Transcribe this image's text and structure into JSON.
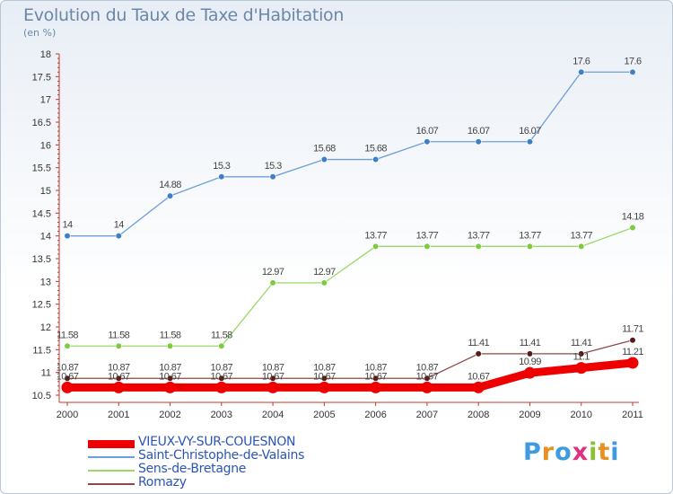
{
  "header": {
    "title": "Evolution du Taux de Taxe d'Habitation",
    "subtitle": "(en %)"
  },
  "logo": {
    "text": "Proxiti",
    "colors": [
      "#3f9be0",
      "#e89020",
      "#3f9be0",
      "#e03080",
      "#8ac036",
      "#e89020",
      "#3f9be0"
    ]
  },
  "chart_data": {
    "type": "line",
    "title": "Evolution du Taux de Taxe d'Habitation",
    "subtitle": "(en %)",
    "xlabel": "",
    "ylabel": "(en %)",
    "x": [
      "2000",
      "2001",
      "2002",
      "2003",
      "2004",
      "2005",
      "2006",
      "2007",
      "2008",
      "2009",
      "2010",
      "2011"
    ],
    "ylim": [
      10.5,
      18
    ],
    "yticks": [
      "10.5",
      "11",
      "11.5",
      "12",
      "12.5",
      "13",
      "13.5",
      "14",
      "14.5",
      "15",
      "15.5",
      "16",
      "16.5",
      "17",
      "17.5",
      "18"
    ],
    "grid": false,
    "legend_position": "bottom-left",
    "series": [
      {
        "name": "VIEUX-VY-SUR-COUESNON",
        "color": "#ee0000",
        "emphasis": true,
        "values": [
          10.67,
          10.67,
          10.67,
          10.67,
          10.67,
          10.67,
          10.67,
          10.67,
          10.67,
          10.99,
          11.1,
          11.21
        ],
        "labels": [
          "10.67",
          "10.67",
          "10.67",
          "10.67",
          "10.67",
          "10.67",
          "10.67",
          "10.67",
          "10.67",
          "10.99",
          "11.1",
          "11.21"
        ]
      },
      {
        "name": "Saint-Christophe-de-Valains",
        "color": "#6f9fd8",
        "marker": "#3e80c8",
        "values": [
          14,
          14,
          14.88,
          15.3,
          15.3,
          15.68,
          15.68,
          16.07,
          16.07,
          16.07,
          17.6,
          17.6
        ],
        "labels": [
          "14",
          "14",
          "14.88",
          "15.3",
          "15.3",
          "15.68",
          "15.68",
          "16.07",
          "16.07",
          "16.07",
          "17.6",
          "17.6"
        ]
      },
      {
        "name": "Sens-de-Bretagne",
        "color": "#9ad86a",
        "marker": "#7ccc3e",
        "values": [
          11.58,
          11.58,
          11.58,
          11.58,
          12.97,
          12.97,
          13.77,
          13.77,
          13.77,
          13.77,
          13.77,
          14.18
        ],
        "labels": [
          "11.58",
          "11.58",
          "11.58",
          "11.58",
          "12.97",
          "12.97",
          "13.77",
          "13.77",
          "13.77",
          "13.77",
          "13.77",
          "14.18"
        ]
      },
      {
        "name": "Romazy",
        "color": "#8a4a4a",
        "marker": "#5a1a1a",
        "values": [
          10.87,
          10.87,
          10.87,
          10.87,
          10.87,
          10.87,
          10.87,
          10.87,
          11.41,
          11.41,
          11.41,
          11.71
        ],
        "labels": [
          "10.87",
          "10.87",
          "10.87",
          "10.87",
          "10.87",
          "10.87",
          "10.87",
          "10.87",
          "11.41",
          "11.41",
          "11.41",
          "11.71"
        ]
      }
    ]
  }
}
